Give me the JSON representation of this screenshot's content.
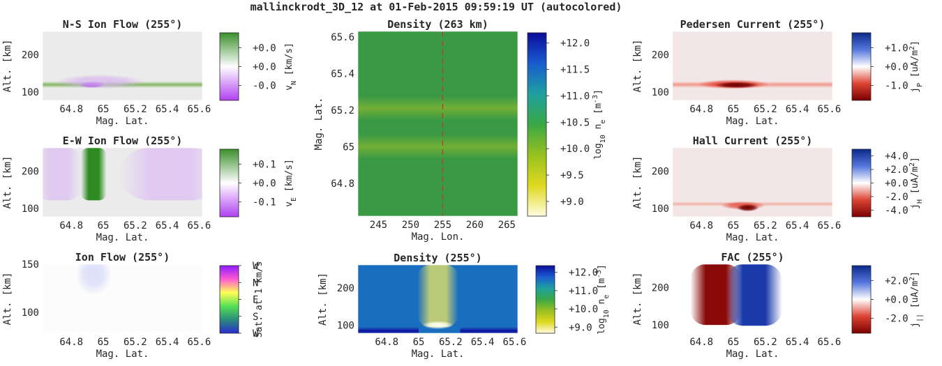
{
  "figure": {
    "title": "mallinckrodt_3D_12 at 01-Feb-2015 09:59:19 UT (autocolored)"
  },
  "chart_data": [
    {
      "id": "ns",
      "type": "heatmap",
      "title": "N-S Ion Flow (255°)",
      "xlabel": "Mag. Lat.",
      "ylabel": "Alt. [km]",
      "xlim": [
        64.62,
        65.62
      ],
      "ylim": [
        78,
        262
      ],
      "xticks": [
        64.8,
        65.0,
        65.2,
        65.4,
        65.6
      ],
      "xtick_labels": [
        "64.8",
        "65",
        "65.2",
        "65.4",
        "65.6"
      ],
      "yticks": [
        100,
        200
      ],
      "ytick_labels": [
        "100",
        "200"
      ],
      "colormap": "green-white-purple",
      "background": "#ebebeb",
      "features": [
        {
          "kind": "band",
          "y": 120,
          "half_width_y": 4,
          "color": "#6aa83f",
          "opacity": 0.8,
          "x_start": 64.62,
          "x_end": 65.62
        },
        {
          "kind": "blob",
          "x": 64.93,
          "y": 120,
          "rx": 0.06,
          "ry": 6,
          "color": "#a020f0",
          "opacity": 1.0
        },
        {
          "kind": "blob",
          "x": 64.98,
          "y": 128,
          "rx": 0.2,
          "ry": 14,
          "color": "#d8b4f0",
          "opacity": 0.8
        }
      ],
      "colorbar": {
        "colors": [
          "#3a8f2a",
          "#ffffff",
          "#b040f0"
        ],
        "ticks": [
          "+0.0",
          "+0.0",
          "-0.0"
        ],
        "tick_pos": [
          0.78,
          0.5,
          0.22
        ],
        "label": "v_N [km/s]"
      }
    },
    {
      "id": "ew",
      "type": "heatmap",
      "title": "E-W Ion Flow (255°)",
      "xlabel": "Mag. Lat.",
      "ylabel": "Alt. [km]",
      "xlim": [
        64.62,
        65.62
      ],
      "ylim": [
        78,
        262
      ],
      "xticks": [
        64.8,
        65.0,
        65.2,
        65.4,
        65.6
      ],
      "xtick_labels": [
        "64.8",
        "65",
        "65.2",
        "65.4",
        "65.6"
      ],
      "yticks": [
        100,
        200
      ],
      "ytick_labels": [
        "100",
        "200"
      ],
      "colormap": "green-white-purple",
      "background": "#ebebeb",
      "features": [
        {
          "kind": "vband",
          "x": 64.94,
          "half_width_x": 0.05,
          "color": "#2e8b22",
          "opacity": 1.0,
          "y_start": 122
        },
        {
          "kind": "vband",
          "x": 64.72,
          "half_width_x": 0.09,
          "color": "#e0c6f2",
          "opacity": 0.9,
          "y_start": 122
        },
        {
          "kind": "vband",
          "x": 65.42,
          "half_width_x": 0.2,
          "color": "#e0c6f2",
          "opacity": 0.9,
          "y_start": 122
        }
      ],
      "colorbar": {
        "colors": [
          "#3a8f2a",
          "#ffffff",
          "#b040f0"
        ],
        "ticks": [
          "+0.1",
          "+0.0",
          "-0.1"
        ],
        "tick_pos": [
          0.78,
          0.5,
          0.22
        ],
        "label": "v_E [km/s]"
      }
    },
    {
      "id": "ion",
      "type": "heatmap",
      "title": "Ion Flow (255°)",
      "xlabel": "Mag. Lat.",
      "ylabel": "Alt. [km]",
      "xlim": [
        64.62,
        65.62
      ],
      "ylim": [
        78,
        150
      ],
      "xticks": [
        64.8,
        65.0,
        65.2,
        65.4,
        65.6
      ],
      "xtick_labels": [
        "64.8",
        "65",
        "65.2",
        "65.4",
        "65.6"
      ],
      "yticks": [
        100,
        150
      ],
      "ytick_labels": [
        "100",
        "150"
      ],
      "colormap": "hue-direction",
      "background": "#fcfcfc",
      "features": [
        {
          "kind": "blob",
          "x": 64.94,
          "y": 140,
          "rx": 0.08,
          "ry": 16,
          "color": "#d8dcf8",
          "opacity": 0.9
        }
      ],
      "colorbar": {
        "colors": [
          "#8c1cff",
          "#ff5ad0",
          "#ffff55",
          "#55e055",
          "#2a8c7a",
          "#2a2ad0"
        ],
        "ticks": [
          "W",
          "N",
          "E",
          "S",
          "W"
        ],
        "tick_pos": [
          1.0,
          0.75,
          0.5,
          0.25,
          0.0
        ],
        "label": "Sat. at 1 km/s"
      }
    },
    {
      "id": "denmap",
      "type": "heatmap",
      "title": "Density (263 km)",
      "xlabel": "Mag. Lon.",
      "ylabel": "Mag. Lat.",
      "xlim": [
        241.8,
        266.7
      ],
      "ylim": [
        64.62,
        65.63
      ],
      "xticks": [
        245,
        250,
        255,
        260,
        265
      ],
      "xtick_labels": [
        "245",
        "250",
        "255",
        "260",
        "265"
      ],
      "yticks": [
        64.8,
        65.0,
        65.2,
        65.4,
        65.6
      ],
      "ytick_labels": [
        "64.8",
        "65",
        "65.2",
        "65.4",
        "65.6"
      ],
      "colormap": "parula",
      "background": "#3a9a44",
      "features": [
        {
          "kind": "band",
          "y": 65.21,
          "half_width_y": 0.03,
          "color": "#8ab830",
          "opacity": 0.7
        },
        {
          "kind": "band",
          "y": 65.0,
          "half_width_y": 0.03,
          "color": "#8ab830",
          "opacity": 0.7
        },
        {
          "kind": "vline",
          "x": 255,
          "color": "#cc3333",
          "dash": "8,5"
        }
      ],
      "colorbar": {
        "colors": [
          "#0b0b9a",
          "#1a5cd0",
          "#1ea0a0",
          "#3aa845",
          "#98c020",
          "#e0d820",
          "#fffde0"
        ],
        "ticks": [
          "+12.0",
          "+11.5",
          "+11.0",
          "+10.5",
          "+10.0",
          "+9.5",
          "+9.0"
        ],
        "tick_pos": [
          0.944,
          0.8,
          0.656,
          0.512,
          0.368,
          0.224,
          0.08
        ],
        "label": "log10 n_e [m^-3]"
      }
    },
    {
      "id": "denalt",
      "type": "heatmap",
      "title": "Density (255°)",
      "xlabel": "Mag. Lat.",
      "ylabel": "Alt. [km]",
      "xlim": [
        64.62,
        65.62
      ],
      "ylim": [
        78,
        262
      ],
      "xticks": [
        64.8,
        65.0,
        65.2,
        65.4,
        65.6
      ],
      "xtick_labels": [
        "64.8",
        "65",
        "65.2",
        "65.4",
        "65.6"
      ],
      "yticks": [
        100,
        200
      ],
      "ytick_labels": [
        "100",
        "200"
      ],
      "colormap": "parula",
      "background": "#5aaa30",
      "features": [
        {
          "kind": "vgrad",
          "stops": [
            [
              0.0,
              "#1a6ec0"
            ],
            [
              0.25,
              "#5aaa30"
            ],
            [
              1.0,
              "#b8c820"
            ]
          ]
        },
        {
          "kind": "vband",
          "x": 65.12,
          "half_width_x": 0.08,
          "color": "#f0e860",
          "opacity": 0.75,
          "y_start": 95
        },
        {
          "kind": "blob",
          "x": 65.12,
          "y": 100,
          "rx": 0.07,
          "ry": 8,
          "color": "#fffff0",
          "opacity": 1.0
        },
        {
          "kind": "band",
          "y": 84,
          "half_width_y": 5,
          "color": "#1010a0",
          "opacity": 1.0,
          "x_start": 64.62,
          "x_end": 65.0
        },
        {
          "kind": "band",
          "y": 84,
          "half_width_y": 5,
          "color": "#1010a0",
          "opacity": 1.0,
          "x_start": 65.26,
          "x_end": 65.62
        }
      ],
      "colorbar": {
        "colors": [
          "#0b0b9a",
          "#1a5cd0",
          "#1ea0a0",
          "#3aa845",
          "#98c020",
          "#e0d820",
          "#fffde0"
        ],
        "ticks": [
          "+12.0",
          "+11.0",
          "+10.0",
          "+9.0"
        ],
        "tick_pos": [
          0.9,
          0.63,
          0.36,
          0.09
        ],
        "label": "log10 n_e [m^-3]"
      }
    },
    {
      "id": "ped",
      "type": "heatmap",
      "title": "Pedersen Current (255°)",
      "xlabel": "Mag. Lat.",
      "ylabel": "Alt. [km]",
      "xlim": [
        64.62,
        65.62
      ],
      "ylim": [
        78,
        262
      ],
      "xticks": [
        64.8,
        65.0,
        65.2,
        65.4,
        65.6
      ],
      "xtick_labels": [
        "64.8",
        "65",
        "65.2",
        "65.4",
        "65.6"
      ],
      "yticks": [
        100,
        200
      ],
      "ytick_labels": [
        "100",
        "200"
      ],
      "colormap": "blue-white-red",
      "background": "#f2e6e6",
      "features": [
        {
          "kind": "band",
          "y": 120,
          "half_width_y": 4,
          "color": "#f08070",
          "opacity": 0.75,
          "x_start": 64.62,
          "x_end": 65.62
        },
        {
          "kind": "blob",
          "x": 65.0,
          "y": 121,
          "rx": 0.16,
          "ry": 9,
          "color": "#e03020",
          "opacity": 0.8
        },
        {
          "kind": "blob",
          "x": 65.02,
          "y": 119,
          "rx": 0.1,
          "ry": 6,
          "color": "#700000",
          "opacity": 1.0
        }
      ],
      "colorbar": {
        "colors": [
          "#0a2a8a",
          "#5577dd",
          "#ffffff",
          "#dd4433",
          "#7a0000"
        ],
        "ticks": [
          "+1.0",
          "+0.0",
          "-1.0"
        ],
        "tick_pos": [
          0.78,
          0.5,
          0.22
        ],
        "label": "j_P [uA/m^2]"
      }
    },
    {
      "id": "hall",
      "type": "heatmap",
      "title": "Hall Current (255°)",
      "xlabel": "Mag. Lat.",
      "ylabel": "Alt. [km]",
      "xlim": [
        64.62,
        65.62
      ],
      "ylim": [
        78,
        262
      ],
      "xticks": [
        64.8,
        65.0,
        65.2,
        65.4,
        65.6
      ],
      "xtick_labels": [
        "64.8",
        "65",
        "65.2",
        "65.4",
        "65.6"
      ],
      "yticks": [
        100,
        200
      ],
      "ytick_labels": [
        "100",
        "200"
      ],
      "colormap": "blue-white-red",
      "background": "#f2e6e6",
      "features": [
        {
          "kind": "band",
          "y": 112,
          "half_width_y": 3,
          "color": "#f0a090",
          "opacity": 0.75,
          "x_start": 64.62,
          "x_end": 65.62
        },
        {
          "kind": "blob",
          "x": 65.06,
          "y": 108,
          "rx": 0.1,
          "ry": 8,
          "color": "#e04030",
          "opacity": 0.8
        },
        {
          "kind": "blob",
          "x": 65.09,
          "y": 102,
          "rx": 0.05,
          "ry": 7,
          "color": "#700000",
          "opacity": 1.0
        }
      ],
      "colorbar": {
        "colors": [
          "#0a2a8a",
          "#5577dd",
          "#ffffff",
          "#dd4433",
          "#7a0000"
        ],
        "ticks": [
          "+4.0",
          "+2.0",
          "+0.0",
          "-2.0",
          "-4.0"
        ],
        "tick_pos": [
          0.9,
          0.7,
          0.5,
          0.3,
          0.1
        ],
        "label": "j_H [uA/m^2]"
      }
    },
    {
      "id": "fac",
      "type": "heatmap",
      "title": "FAC (255°)",
      "xlabel": "Mag. Lat.",
      "ylabel": "Alt. [km]",
      "xlim": [
        64.62,
        65.62
      ],
      "ylim": [
        78,
        262
      ],
      "xticks": [
        64.8,
        65.0,
        65.2,
        65.4,
        65.6
      ],
      "xtick_labels": [
        "64.8",
        "65",
        "65.2",
        "65.4",
        "65.6"
      ],
      "yticks": [
        100,
        200
      ],
      "ytick_labels": [
        "100",
        "200"
      ],
      "colormap": "blue-white-red",
      "background": "#ffffff",
      "features": [
        {
          "kind": "vband",
          "x": 64.89,
          "half_width_x": 0.1,
          "color": "#8a0a0a",
          "opacity": 1.0,
          "y_start": 100
        },
        {
          "kind": "vband",
          "x": 65.13,
          "half_width_x": 0.11,
          "color": "#1a3aaa",
          "opacity": 1.0,
          "y_start": 98
        }
      ],
      "colorbar": {
        "colors": [
          "#0a2a8a",
          "#5577dd",
          "#ffffff",
          "#dd4433",
          "#7a0000"
        ],
        "ticks": [
          "+2.0",
          "+0.0",
          "-2.0"
        ],
        "tick_pos": [
          0.78,
          0.5,
          0.22
        ],
        "label": "j_|| [uA/m^2]"
      }
    }
  ]
}
